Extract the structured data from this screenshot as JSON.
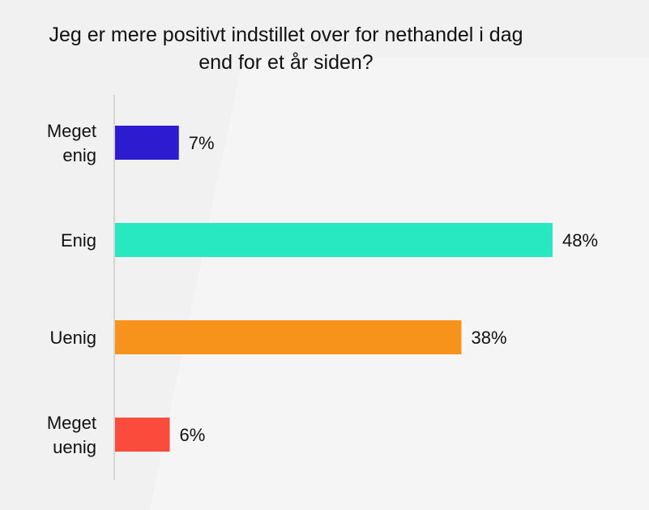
{
  "chart_data": {
    "type": "bar",
    "orientation": "horizontal",
    "title_lines": [
      "Jeg er mere positivt indstillet over for nethandel i dag",
      "end for et år siden?"
    ],
    "categories": [
      [
        "Meget",
        "enig"
      ],
      [
        "Enig"
      ],
      [
        "Uenig"
      ],
      [
        "Meget",
        "uenig"
      ]
    ],
    "values": [
      7,
      48,
      38,
      6
    ],
    "value_labels": [
      "7%",
      "48%",
      "38%",
      "6%"
    ],
    "colors": [
      "#2d1bd0",
      "#27e8c0",
      "#f7931a",
      "#fb4b3d"
    ],
    "xlim": [
      0,
      48
    ],
    "grid": false,
    "legend": false
  }
}
